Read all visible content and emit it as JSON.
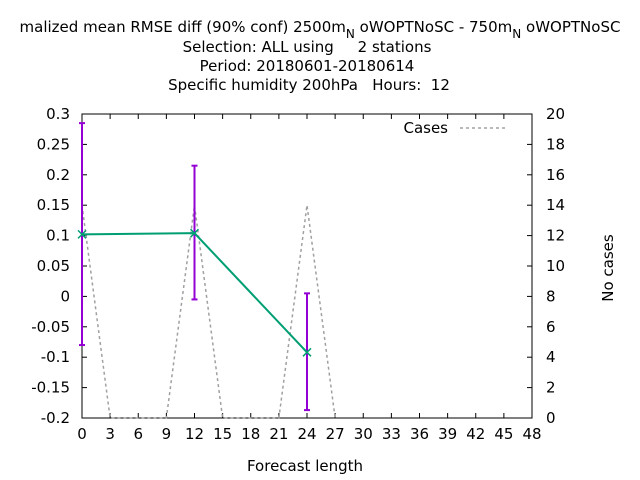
{
  "chart_data": {
    "type": "line",
    "title_lines": [
      "malized mean RMSE diff (90% conf) 2500m_N oWOPTNoSC - 750m_N oWOPTNoSC",
      "Selection: ALL using     2 stations",
      "Period: 20180601-20180614",
      "Specific humidity 200hPa   Hours:  12"
    ],
    "xlabel": "Forecast length",
    "ylabel": "",
    "y2label": "No cases",
    "xlim": [
      0,
      48
    ],
    "ylim": [
      -0.2,
      0.3
    ],
    "y2lim": [
      0,
      20
    ],
    "xticks": [
      "0",
      "3",
      "6",
      "9",
      "12",
      "15",
      "18",
      "21",
      "24",
      "27",
      "30",
      "33",
      "36",
      "39",
      "42",
      "45",
      "48"
    ],
    "yticks": [
      "0.3",
      "0.25",
      "0.2",
      "0.15",
      "0.1",
      "0.05",
      "0",
      "-0.05",
      "-0.1",
      "-0.15",
      "-0.2"
    ],
    "y2ticks": [
      "20",
      "18",
      "16",
      "14",
      "12",
      "10",
      "8",
      "6",
      "4",
      "2",
      "0"
    ],
    "grid": false,
    "legend": "top-right",
    "series": [
      {
        "x": [
          0,
          12,
          24
        ],
        "values": [
          0.102,
          0.104,
          -0.092
        ],
        "err_low": [
          -0.08,
          -0.005,
          -0.187
        ],
        "err_high": [
          0.285,
          0.215,
          0.005
        ],
        "color": "#009e73",
        "err_color": "#9400d3"
      },
      {
        "name": "Cases",
        "axis": "y2",
        "x": [
          0,
          3,
          9,
          12,
          15,
          21,
          24,
          27
        ],
        "values": [
          14,
          0,
          0,
          14,
          0,
          0,
          14,
          0
        ],
        "color": "#a0a0a0",
        "dashed": true
      }
    ]
  }
}
